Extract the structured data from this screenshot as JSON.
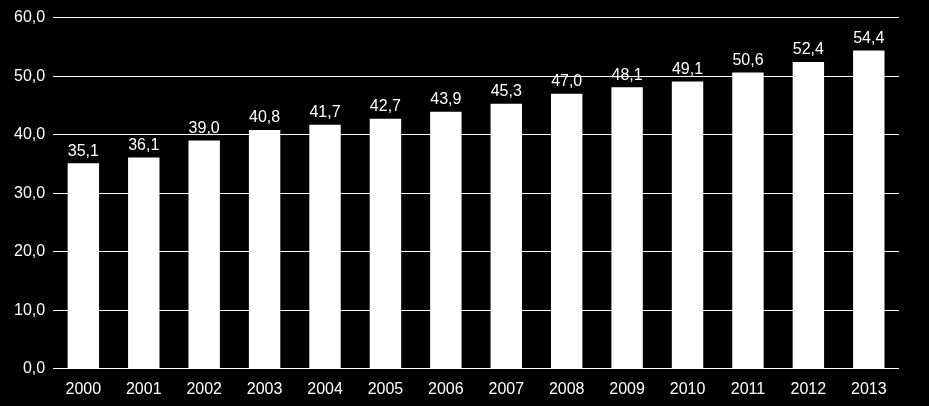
{
  "chart_data": {
    "type": "bar",
    "categories": [
      "2000",
      "2001",
      "2002",
      "2003",
      "2004",
      "2005",
      "2006",
      "2007",
      "2008",
      "2009",
      "2010",
      "2011",
      "2012",
      "2013"
    ],
    "values": [
      35.1,
      36.1,
      39.0,
      40.8,
      41.7,
      42.7,
      43.9,
      45.3,
      47.0,
      48.1,
      49.1,
      50.6,
      52.4,
      54.4
    ],
    "value_labels": [
      "35,1",
      "36,1",
      "39,0",
      "40,8",
      "41,7",
      "42,7",
      "43,9",
      "45,3",
      "47,0",
      "48,1",
      "49,1",
      "50,6",
      "52,4",
      "54,4"
    ],
    "color": "#ffffff",
    "ylim": [
      0,
      60
    ],
    "yticks": [
      {
        "value": 0,
        "label": "0,0"
      },
      {
        "value": 10,
        "label": "10,0"
      },
      {
        "value": 20,
        "label": "20,0"
      },
      {
        "value": 30,
        "label": "30,0"
      },
      {
        "value": 40,
        "label": "40,0"
      },
      {
        "value": 50,
        "label": "50,0"
      },
      {
        "value": 60,
        "label": "60,0"
      }
    ],
    "grid": true,
    "data_labels": true
  }
}
